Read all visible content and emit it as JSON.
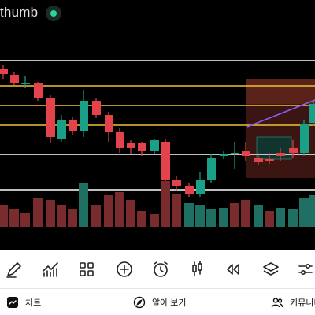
{
  "header": {
    "exchange_name": "thumb",
    "live_icon": "live-status-dot"
  },
  "chart": {
    "colors": {
      "bullish": "#1aa086",
      "bearish": "#e5434b",
      "level_lines": "#ffffff",
      "gold_lines": "#f0c330",
      "trendline": "#8b5cf6",
      "vol_bull": "#1f6f62",
      "vol_bear": "#7a2b2e"
    },
    "level_count": 6
  },
  "toolbar": {
    "tools": [
      {
        "name": "draw-tool",
        "icon": "pen-icon"
      },
      {
        "name": "indicator-tool",
        "icon": "chart-indicator-icon"
      },
      {
        "name": "layout-tool",
        "icon": "grid-icon"
      },
      {
        "name": "add-tool",
        "icon": "plus-circle-icon"
      },
      {
        "name": "alert-tool",
        "icon": "alarm-clock-icon"
      },
      {
        "name": "candle-type-tool",
        "icon": "candlestick-icon"
      },
      {
        "name": "replay-tool",
        "icon": "rewind-icon"
      },
      {
        "name": "layers-tool",
        "icon": "layers-icon"
      },
      {
        "name": "settings-tool",
        "icon": "sliders-icon"
      }
    ]
  },
  "bottom_nav": {
    "chart_label": "차트",
    "explore_label": "알아 보기",
    "community_label": "커뮤니티"
  }
}
